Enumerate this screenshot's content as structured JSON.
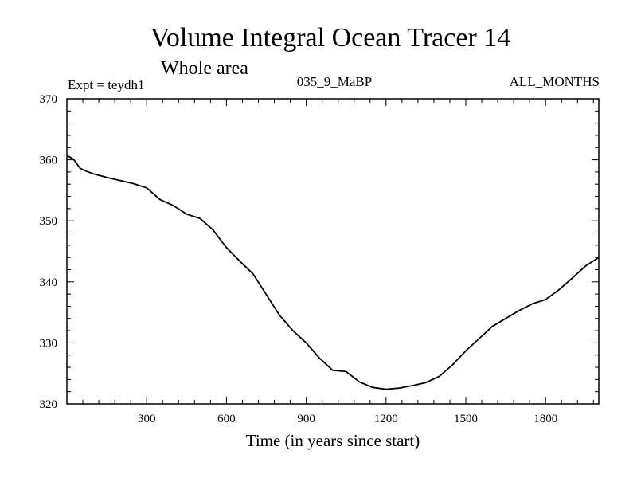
{
  "chart_data": {
    "type": "line",
    "title": "Volume Integral Ocean Tracer 14",
    "subtitle": "Whole area",
    "expt_label": "Expt = teydh1",
    "run_label": "035_9_MaBP",
    "months_label": "ALL_MONTHS",
    "xlabel": "Time (in years since start)",
    "ylabel": "",
    "xlim": [
      0,
      2000
    ],
    "ylim": [
      320,
      370
    ],
    "x_ticks": [
      300,
      600,
      900,
      1200,
      1500,
      1800
    ],
    "y_ticks": [
      320,
      330,
      340,
      350,
      360,
      370
    ],
    "grid": false,
    "series": [
      {
        "x": [
          0,
          25,
          50,
          75,
          100,
          150,
          200,
          250,
          300,
          350,
          400,
          450,
          500,
          550,
          600,
          650,
          700,
          750,
          800,
          850,
          900,
          950,
          1000,
          1050,
          1100,
          1150,
          1200,
          1250,
          1300,
          1350,
          1400,
          1450,
          1500,
          1550,
          1600,
          1650,
          1700,
          1750,
          1800,
          1850,
          1900,
          1950,
          2000
        ],
        "y": [
          360.7,
          360.1,
          358.6,
          358.1,
          357.7,
          357.1,
          356.6,
          356.1,
          355.4,
          353.5,
          352.5,
          351.1,
          350.4,
          348.5,
          345.6,
          343.4,
          341.3,
          337.9,
          334.5,
          332.0,
          330.0,
          327.5,
          325.5,
          325.3,
          323.6,
          322.7,
          322.4,
          322.6,
          323.0,
          323.5,
          324.5,
          326.4,
          328.7,
          330.7,
          332.7,
          334.0,
          335.3,
          336.4,
          337.1,
          338.7,
          340.6,
          342.6,
          344.0
        ]
      }
    ]
  }
}
